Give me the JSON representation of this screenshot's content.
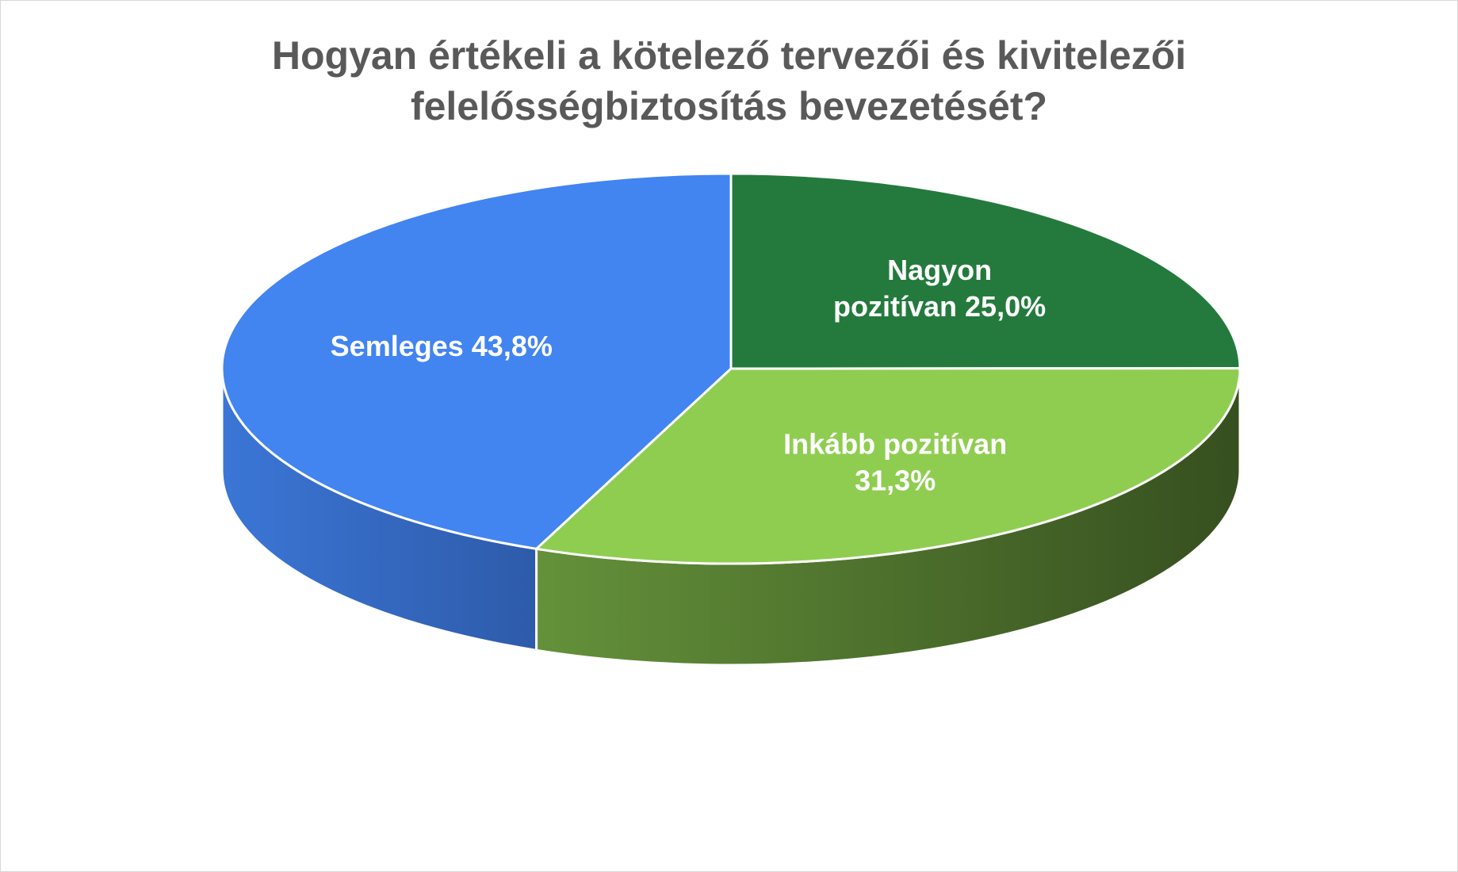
{
  "chart_data": {
    "type": "pie",
    "style": "3d",
    "title_lines": [
      "Hogyan értékeli a kötelező tervezői és kivitelezői",
      "felelősségbiztosítás bevezetését?"
    ],
    "slices": [
      {
        "name": "Nagyon pozitívan",
        "value": 25.0,
        "label_lines": [
          "Nagyon",
          "pozitívan 25,0%"
        ],
        "color": "#237A3C",
        "side_light": "#2E7E3F",
        "side_dark": "#1B5426"
      },
      {
        "name": "Inkább pozitívan",
        "value": 31.3,
        "label_lines": [
          "Inkább pozitívan",
          "31,3%"
        ],
        "color": "#8FCD50",
        "side_light": "#64913A",
        "side_dark": "#364F1F"
      },
      {
        "name": "Semleges",
        "value": 43.8,
        "label_lines": [
          "Semleges 43,8%"
        ],
        "color": "#4284F0",
        "side_light": "#3B76D6",
        "side_dark": "#2E5BAA"
      }
    ]
  }
}
